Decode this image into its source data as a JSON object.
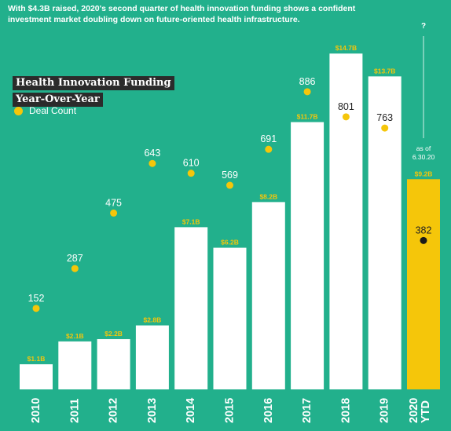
{
  "intro_text": "With $4.3B raised, 2020's second quarter of health innovation funding shows a confident investment market doubling down on future-oriented health infrastructure.",
  "title_line1": "Health Innovation Funding",
  "title_line2": "Year-Over-Year",
  "legend_label": "Deal Count",
  "question_mark": "?",
  "asof_line1": "as of",
  "asof_line2": "6.30.20",
  "colors": {
    "background": "#22b08c",
    "bar": "#ffffff",
    "highlight_bar": "#f5c60a",
    "deal_dot": "#f5c60a",
    "highlight_dot": "#1a1a1a",
    "funding_label": "#f5c60a",
    "text": "#ffffff",
    "dark_text": "#222222"
  },
  "chart_data": {
    "type": "bar",
    "categories": [
      "2010",
      "2011",
      "2012",
      "2013",
      "2014",
      "2015",
      "2016",
      "2017",
      "2018",
      "2019",
      "2020 YTD"
    ],
    "series": [
      {
        "values": [
          1.1,
          2.1,
          2.2,
          2.8,
          7.1,
          6.2,
          8.2,
          11.7,
          14.7,
          13.7,
          9.2
        ],
        "labels": [
          "$1.1B",
          "$2.1B",
          "$2.2B",
          "$2.8B",
          "$7.1B",
          "$6.2B",
          "$8.2B",
          "$11.7B",
          "$14.7B",
          "$13.7B",
          "$9.2B"
        ]
      },
      {
        "name": "Deal Count",
        "values": [
          152,
          287,
          475,
          643,
          610,
          569,
          691,
          886,
          801,
          763,
          382
        ]
      }
    ],
    "title": "Health Innovation Funding Year-Over-Year",
    "highlight_category": "2020 YTD",
    "legend": "top-left"
  }
}
